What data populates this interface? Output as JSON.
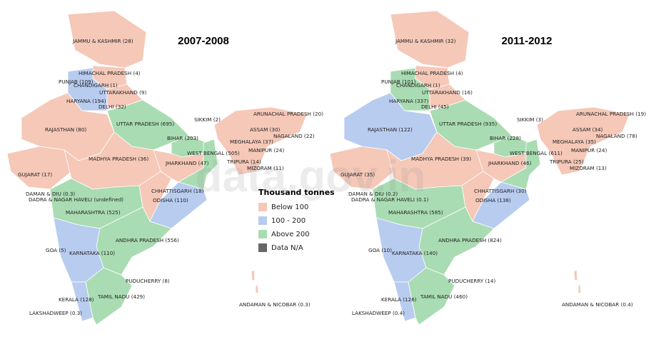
{
  "maps": [
    {
      "title": "2007-2008",
      "labels": [
        "JAMMU & KASHMIR (28)",
        "HIMACHAL PRADESH (4)",
        "PUNJAB (109)",
        "CHANDIGARH (1)",
        "UTTARAKHAND (9)",
        "HARYANA (194)",
        "DELHI (32)",
        "SIKKIM (2)",
        "ARUNACHAL PRADESH (20)",
        "UTTAR PRADESH (695)",
        "ASSAM (30)",
        "RAJASTHAN (80)",
        "NAGALAND (22)",
        "BIHAR (203)",
        "MEGHALAYA (37)",
        "MADHYA PRADESH (36)",
        "WEST BENGAL (505)",
        "MANIPUR (24)",
        "JHARKHAND (47)",
        "TRIPURA (14)",
        "MIZORAM (11)",
        "GUJARAT (17)",
        "CHHATTISGARH (18)",
        "DAMAN & DIU (0.3)",
        "DADRA & NAGAR HAVELI (undefined)",
        "ODISHA (110)",
        "MAHARASHTRA (525)",
        "ANDHRA PRADESH (556)",
        "GOA (5)",
        "KARNATAKA (110)",
        "PUDUCHERRY (8)",
        "TAMIL NADU (429)",
        "KERALA (128)",
        "ANDAMAN & NICOBAR (0.3)",
        "LAKSHADWEEP (0.3)"
      ]
    },
    {
      "title": "2011-2012",
      "labels": [
        "JAMMU & KASHMIR (32)",
        "HIMACHAL PRADESH (4)",
        "PUNJAB (101)",
        "CHANDIGARH (1)",
        "UTTARAKHAND (16)",
        "HARYANA (337)",
        "DELHI (45)",
        "SIKKIM (3)",
        "ARUNACHAL PRADESH (19)",
        "UTTAR PRADESH (935)",
        "ASSAM (34)",
        "RAJASTHAN (122)",
        "NAGALAND (78)",
        "BIHAR (228)",
        "MEGHALAYA (35)",
        "MADHYA PRADESH (39)",
        "WEST BENGAL (611)",
        "MANIPUR (24)",
        "JHARKHAND (46)",
        "TRIPURA (25)",
        "MIZORAM (13)",
        "GUJARAT (35)",
        "CHHATTISGARH (30)",
        "DAMAN & DIU (0.2)",
        "DADRA & NAGAR HAVELI (0.1)",
        "ODISHA (138)",
        "MAHARASHTRA (585)",
        "ANDHRA PRADESH (824)",
        "GOA (10)",
        "KARNATAKA (140)",
        "PUDUCHERRY (14)",
        "TAMIL NADU (460)",
        "KERALA (126)",
        "ANDAMAN & NICOBAR (0.4)",
        "LAKSHADWEEP (0.4)"
      ]
    }
  ],
  "legend": {
    "title": "Thousand tonnes",
    "items": [
      {
        "label": "Below 100",
        "color": "#f5c8b8"
      },
      {
        "label": "100 - 200",
        "color": "#b8ccf0"
      },
      {
        "label": "Above 200",
        "color": "#a9dcb2"
      },
      {
        "label": "Data N/A",
        "color": "#666666"
      }
    ]
  },
  "watermark": "data.gov.in"
}
